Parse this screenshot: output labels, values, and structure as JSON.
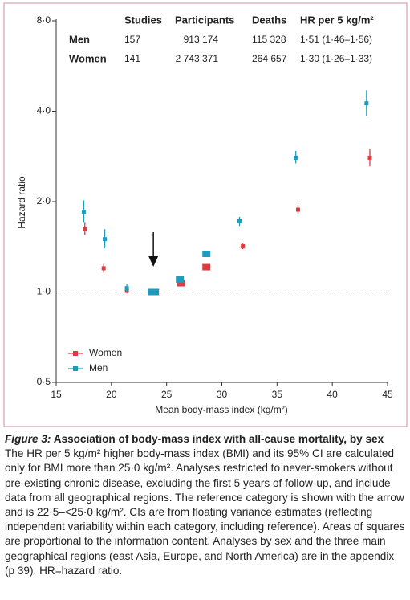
{
  "chart_data": {
    "type": "forest-scatter",
    "y_scale": "log",
    "xlabel": "Mean body-mass index (kg/m²)",
    "ylabel": "Hazard ratio",
    "xlim": [
      15,
      45
    ],
    "xticks": [
      15,
      20,
      25,
      30,
      35,
      40,
      45
    ],
    "ylim": [
      0.5,
      8
    ],
    "yticks": [
      {
        "value": 0.5,
        "label": "0·5"
      },
      {
        "value": 1,
        "label": "1·0"
      },
      {
        "value": 2,
        "label": "2·0"
      },
      {
        "value": 4,
        "label": "4·0"
      },
      {
        "value": 8,
        "label": "8·0"
      }
    ],
    "reference_line": 1,
    "reference_arrow_x": 23.8,
    "series": [
      {
        "name": "Women",
        "color": "#e03a3e",
        "x": [
          17.6,
          19.3,
          21.4,
          23.8,
          26.3,
          28.6,
          31.9,
          36.9,
          43.4
        ],
        "values": [
          1.62,
          1.2,
          1.01,
          1.0,
          1.07,
          1.21,
          1.42,
          1.88,
          2.8
        ],
        "ci_low": [
          1.55,
          1.16,
          0.99,
          null,
          null,
          null,
          1.39,
          1.82,
          2.62
        ],
        "ci_high": [
          1.7,
          1.24,
          1.03,
          null,
          null,
          null,
          1.45,
          1.95,
          3.0
        ]
      },
      {
        "name": "Men",
        "color": "#1e9bbd",
        "x": [
          17.5,
          19.4,
          21.4,
          23.8,
          26.2,
          28.6,
          31.6,
          36.7,
          43.1
        ],
        "values": [
          1.85,
          1.5,
          1.03,
          1.0,
          1.1,
          1.34,
          1.72,
          2.8,
          4.25
        ],
        "ci_low": [
          1.7,
          1.4,
          1.0,
          null,
          null,
          null,
          1.66,
          2.68,
          3.85
        ],
        "ci_high": [
          2.02,
          1.62,
          1.06,
          null,
          null,
          null,
          1.78,
          2.95,
          4.7
        ]
      }
    ],
    "table": {
      "columns": [
        "Studies",
        "Participants",
        "Deaths",
        "HR per 5 kg/m²"
      ],
      "rows": [
        [
          "Men",
          "157",
          "913 174",
          "115 328",
          "1·51 (1·46–1·56)"
        ],
        [
          "Women",
          "141",
          "2 743 371",
          "264 657",
          "1·30 (1·26–1·33)"
        ]
      ]
    }
  },
  "caption": {
    "label": "Figure 3:",
    "title": "Association of body-mass index with all-cause mortality, by sex",
    "text": "The HR per 5 kg/m² higher body-mass index (BMI) and its 95% CI are calculated only for BMI more than 25·0 kg/m². Analyses restricted to never-smokers without pre-existing chronic disease, excluding the first 5 years of follow-up, and include data from all geographical regions. The reference category is shown with the arrow and is 22·5–<25·0 kg/m². CIs are from floating variance estimates (reflecting independent variability within each category, including reference). Areas of squares are proportional to the information content. Analyses by sex and the three main geographical regions (east Asia, Europe, and North America) are in the appendix (p 39). HR=hazard ratio."
  }
}
